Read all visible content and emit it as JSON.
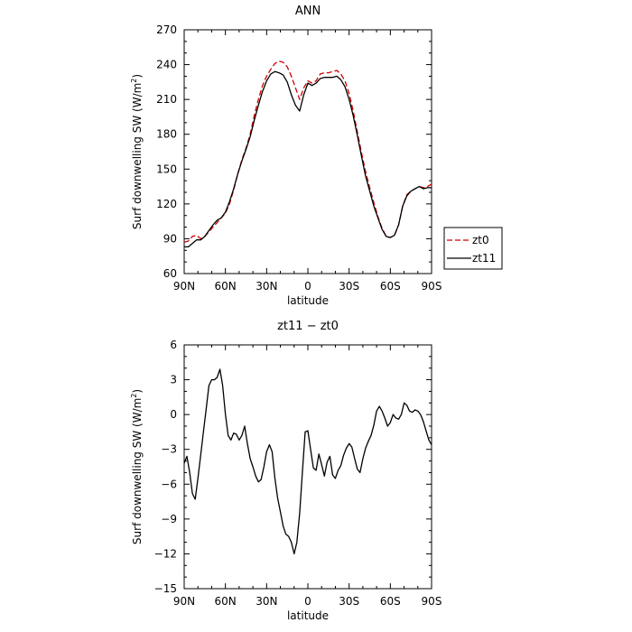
{
  "chart_data": [
    {
      "type": "line",
      "title": "ANN",
      "xlabel": "latitude",
      "ylabel": "Surf downwelling SW (W/m²)",
      "ylabel_main": "Surf downwelling SW (W/m",
      "ylabel_sup": "2",
      "ylabel_tail": ")",
      "xlim": [
        90,
        -90
      ],
      "ylim": [
        60,
        270
      ],
      "xticks": [
        90,
        60,
        30,
        0,
        -30,
        -60,
        -90
      ],
      "xtick_labels": [
        "90N",
        "60N",
        "30N",
        "0",
        "30S",
        "60S",
        "90S"
      ],
      "yticks": [
        60,
        90,
        120,
        150,
        180,
        210,
        240,
        270
      ],
      "ytick_labels": [
        "60",
        "90",
        "120",
        "150",
        "180",
        "210",
        "240",
        "270"
      ],
      "legend_position": "right",
      "series": [
        {
          "name": "zt0",
          "color": "#cc0000",
          "style": "dashed",
          "x": [
            90,
            87,
            84,
            81,
            78,
            75,
            72,
            69,
            66,
            63,
            60,
            57,
            54,
            51,
            48,
            45,
            42,
            39,
            36,
            33,
            30,
            27,
            24,
            21,
            18,
            15,
            12,
            9,
            6,
            3,
            0,
            -3,
            -6,
            -9,
            -12,
            -15,
            -18,
            -21,
            -24,
            -27,
            -30,
            -33,
            -36,
            -39,
            -42,
            -45,
            -48,
            -51,
            -54,
            -57,
            -60,
            -63,
            -66,
            -69,
            -72,
            -75,
            -78,
            -81,
            -84,
            -87,
            -90
          ],
          "y": [
            87,
            88,
            92,
            93,
            90,
            92,
            96,
            100,
            104,
            108,
            112,
            120,
            132,
            146,
            158,
            168,
            180,
            196,
            210,
            222,
            230,
            236,
            241,
            243,
            242,
            238,
            230,
            220,
            210,
            220,
            226,
            224,
            226,
            232,
            233,
            233,
            234,
            235,
            232,
            226,
            215,
            200,
            182,
            164,
            148,
            134,
            121,
            109,
            99,
            92,
            91,
            93,
            102,
            118,
            128,
            131,
            133,
            135,
            134,
            135,
            137
          ]
        },
        {
          "name": "zt11",
          "color": "#000000",
          "style": "solid",
          "x": [
            90,
            87,
            84,
            81,
            78,
            75,
            72,
            69,
            66,
            63,
            60,
            57,
            54,
            51,
            48,
            45,
            42,
            39,
            36,
            33,
            30,
            27,
            24,
            21,
            18,
            15,
            12,
            9,
            6,
            3,
            0,
            -3,
            -6,
            -9,
            -12,
            -15,
            -18,
            -21,
            -24,
            -27,
            -30,
            -33,
            -36,
            -39,
            -42,
            -45,
            -48,
            -51,
            -54,
            -57,
            -60,
            -63,
            -66,
            -69,
            -72,
            -75,
            -78,
            -81,
            -84,
            -87,
            -90
          ],
          "y": [
            83,
            83,
            86,
            89,
            89,
            92,
            97,
            102,
            106,
            108,
            113,
            122,
            133,
            146,
            157,
            167,
            178,
            192,
            205,
            217,
            226,
            232,
            234,
            233,
            231,
            225,
            214,
            205,
            200,
            214,
            224,
            222,
            224,
            228,
            229,
            229,
            229,
            230,
            227,
            221,
            210,
            196,
            179,
            161,
            144,
            131,
            118,
            108,
            98,
            92,
            91,
            93,
            102,
            118,
            127,
            131,
            133,
            135,
            133,
            134,
            134
          ]
        }
      ]
    },
    {
      "type": "line",
      "title": "zt11 − zt0",
      "xlabel": "latitude",
      "ylabel": "Surf downwelling SW (W/m²)",
      "ylabel_main": "Surf downwelling SW (W/m",
      "ylabel_sup": "2",
      "ylabel_tail": ")",
      "xlim": [
        90,
        -90
      ],
      "ylim": [
        -15,
        6
      ],
      "xticks": [
        90,
        60,
        30,
        0,
        -30,
        -60,
        -90
      ],
      "xtick_labels": [
        "90N",
        "60N",
        "30N",
        "0",
        "30S",
        "60S",
        "90S"
      ],
      "yticks": [
        -15,
        -12,
        -9,
        -6,
        -3,
        0,
        3,
        6
      ],
      "ytick_labels": [
        "−15",
        "−12",
        "−9",
        "−6",
        "−3",
        "0",
        "3",
        "6"
      ],
      "series": [
        {
          "color": "#000000",
          "style": "solid",
          "x": [
            90,
            88,
            86,
            84,
            82,
            80,
            78,
            76,
            74,
            72,
            70,
            68,
            66,
            64,
            62,
            60,
            58,
            56,
            54,
            52,
            50,
            48,
            46,
            44,
            42,
            40,
            38,
            36,
            34,
            32,
            30,
            28,
            26,
            24,
            22,
            20,
            18,
            16,
            14,
            12,
            10,
            8,
            6,
            4,
            2,
            0,
            -2,
            -4,
            -6,
            -8,
            -10,
            -12,
            -14,
            -16,
            -18,
            -20,
            -22,
            -24,
            -26,
            -28,
            -30,
            -32,
            -34,
            -36,
            -38,
            -40,
            -42,
            -44,
            -46,
            -48,
            -50,
            -52,
            -54,
            -56,
            -58,
            -60,
            -62,
            -64,
            -66,
            -68,
            -70,
            -72,
            -74,
            -76,
            -78,
            -80,
            -82,
            -84,
            -86,
            -88,
            -90
          ],
          "y": [
            -4.2,
            -3.6,
            -5.0,
            -6.8,
            -7.3,
            -5.5,
            -3.5,
            -1.5,
            0.5,
            2.5,
            3.0,
            3.0,
            3.2,
            3.9,
            2.5,
            0.0,
            -1.8,
            -2.2,
            -1.6,
            -1.7,
            -2.2,
            -1.8,
            -1.0,
            -2.5,
            -3.8,
            -4.5,
            -5.3,
            -5.8,
            -5.6,
            -4.5,
            -3.2,
            -2.6,
            -3.2,
            -5.5,
            -7.2,
            -8.4,
            -9.6,
            -10.3,
            -10.5,
            -11.0,
            -12.0,
            -11.0,
            -8.5,
            -5.0,
            -1.5,
            -1.4,
            -3.0,
            -4.6,
            -4.8,
            -3.4,
            -4.3,
            -5.3,
            -4.1,
            -3.6,
            -5.2,
            -5.5,
            -4.8,
            -4.4,
            -3.5,
            -2.9,
            -2.5,
            -2.8,
            -3.8,
            -4.7,
            -5.0,
            -3.8,
            -2.9,
            -2.3,
            -1.8,
            -0.9,
            0.3,
            0.7,
            0.3,
            -0.3,
            -1.0,
            -0.7,
            0.0,
            -0.3,
            -0.4,
            0.0,
            1.0,
            0.8,
            0.3,
            0.2,
            0.4,
            0.3,
            0.0,
            -0.6,
            -1.4,
            -2.2,
            -2.6
          ]
        }
      ]
    }
  ]
}
